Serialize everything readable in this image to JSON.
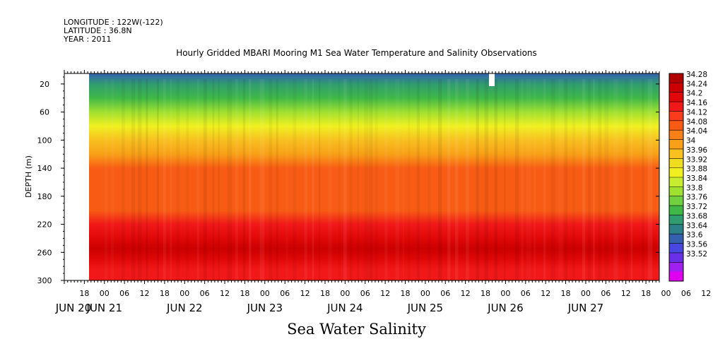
{
  "header": {
    "longitude": "LONGITUDE : 122W(-122)",
    "latitude": "LATITUDE : 36.8N",
    "year": "YEAR : 2011"
  },
  "chart_data": {
    "type": "heatmap",
    "title": "Hourly Gridded MBARI Mooring M1 Sea Water Temperature and Salinity Observations",
    "xlabel": "Sea Water Salinity",
    "ylabel": "DEPTH (m)",
    "y_axis": {
      "ticks": [
        20,
        60,
        100,
        140,
        180,
        220,
        260,
        300
      ],
      "range": [
        5,
        300
      ],
      "inverted": true
    },
    "x_axis": {
      "hour_ticks": [
        "18",
        "00",
        "06",
        "12",
        "18",
        "00",
        "06",
        "12",
        "18",
        "00",
        "06",
        "12",
        "18",
        "00",
        "06",
        "12",
        "18",
        "00",
        "06",
        "12",
        "18",
        "00",
        "06",
        "12",
        "18",
        "00",
        "06",
        "12",
        "18",
        "00",
        "06",
        "12"
      ],
      "date_labels": [
        "JUN 20",
        "JUN 21",
        "JUN 22",
        "JUN 23",
        "JUN 24",
        "JUN 25",
        "JUN 26",
        "JUN 27"
      ],
      "range": [
        "2011-06-20 12:00",
        "2011-06-27 22:00"
      ],
      "data_start": "2011-06-21 00:00"
    },
    "colorbar": {
      "levels": [
        "34.28",
        "34.24",
        "34.2",
        "34.16",
        "34.12",
        "34.08",
        "34.04",
        "34",
        "33.96",
        "33.92",
        "33.88",
        "33.84",
        "33.8",
        "33.76",
        "33.72",
        "33.68",
        "33.64",
        "33.6",
        "33.56",
        "33.52"
      ],
      "colors": [
        "#b00000",
        "#cc0000",
        "#e00808",
        "#f01818",
        "#f83c1c",
        "#f85c14",
        "#f88018",
        "#f8a018",
        "#f8c020",
        "#f0dc20",
        "#f0f020",
        "#c8ec30",
        "#a0e030",
        "#70d040",
        "#40b848",
        "#309c70",
        "#2c8088",
        "#3460b0",
        "#4848e0",
        "#6a30e8",
        "#a020f0",
        "#e000f0"
      ]
    },
    "depth_profile": [
      {
        "depth": 5,
        "salinity": 33.62
      },
      {
        "depth": 20,
        "salinity": 33.68
      },
      {
        "depth": 40,
        "salinity": 33.74
      },
      {
        "depth": 60,
        "salinity": 33.8
      },
      {
        "depth": 80,
        "salinity": 33.88
      },
      {
        "depth": 100,
        "salinity": 33.97
      },
      {
        "depth": 120,
        "salinity": 34.03
      },
      {
        "depth": 140,
        "salinity": 34.08
      },
      {
        "depth": 160,
        "salinity": 34.11
      },
      {
        "depth": 180,
        "salinity": 34.09
      },
      {
        "depth": 200,
        "salinity": 34.1
      },
      {
        "depth": 220,
        "salinity": 34.16
      },
      {
        "depth": 240,
        "salinity": 34.21
      },
      {
        "depth": 255,
        "salinity": 34.25
      },
      {
        "depth": 270,
        "salinity": 34.22
      },
      {
        "depth": 285,
        "salinity": 34.19
      },
      {
        "depth": 300,
        "salinity": 34.17
      }
    ]
  }
}
